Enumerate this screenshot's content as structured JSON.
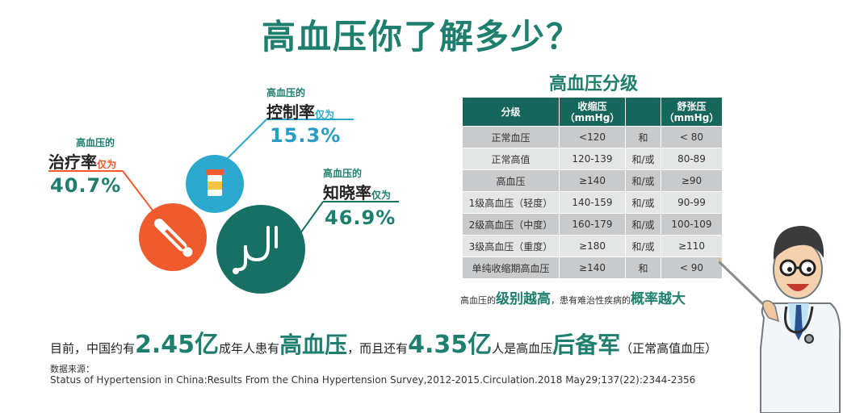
{
  "title": "高血压你了解多少？",
  "stats": {
    "control": {
      "prefix": "高血压的",
      "label": "控制率",
      "only": "仅为",
      "value": "15.3%"
    },
    "treatment": {
      "prefix": "高血压的",
      "label": "治疗率",
      "only": "仅为",
      "value": "40.7%"
    },
    "awareness": {
      "prefix": "高血压的",
      "label": "知晓率",
      "only": "仅为",
      "value": "46.9%"
    }
  },
  "grading": {
    "title": "高血压分级",
    "headers": {
      "grade": "分级",
      "systolic_1": "收缩压",
      "systolic_2": "（mmHg）",
      "diastolic_1": "舒张压",
      "diastolic_2": "（mmHg）"
    },
    "rows": [
      {
        "grade": "正常血压",
        "systolic": "<120",
        "relation": "和",
        "diastolic": "< 80"
      },
      {
        "grade": "正常高值",
        "systolic": "120-139",
        "relation": "和/或",
        "diastolic": "80-89"
      },
      {
        "grade": "高血压",
        "systolic": "≥140",
        "relation": "和/或",
        "diastolic": "≥90"
      },
      {
        "grade": "1级高血压（轻度）",
        "systolic": "140-159",
        "relation": "和/或",
        "diastolic": "90-99"
      },
      {
        "grade": "2级高血压（中度）",
        "systolic": "160-179",
        "relation": "和/或",
        "diastolic": "100-109"
      },
      {
        "grade": "3级高血压（重度）",
        "systolic": "≥180",
        "relation": "和/或",
        "diastolic": "≥110"
      },
      {
        "grade": "单纯收缩期高血压",
        "systolic": "≥140",
        "relation": "和",
        "diastolic": "< 90"
      }
    ],
    "note": {
      "p1": "高血压的",
      "e1": "级别越高",
      "p2": "，患有难治性疾病的",
      "e2": "概率越大"
    }
  },
  "summary": {
    "t1": "目前，中国约有",
    "n1": "2.45亿",
    "t2": "成年人患有",
    "b1": "高血压",
    "t3": "，而且还有",
    "n2": "4.35亿",
    "t4": "人是高血压",
    "b2": "后备军",
    "t5": "（正常高值血压）"
  },
  "source": {
    "label": "数据来源：",
    "text": "Status of Hypertension in China:Results From the China Hypertension Survey,2012-2015.Circulation.2018 May29;137(22):2344-2356"
  },
  "colors": {
    "teal": "#1f7f6e",
    "light_blue": "#2ca9cf",
    "orange": "#ef5b2c",
    "dark_teal": "#186f63",
    "value_blue": "#2a9bc4",
    "value_dark": "#1f7f6e"
  },
  "icons": {
    "control": "medicine-bottle-icon",
    "treatment": "thermometer-icon",
    "awareness": "stethoscope-icon",
    "doctor": "doctor-cartoon-icon"
  }
}
